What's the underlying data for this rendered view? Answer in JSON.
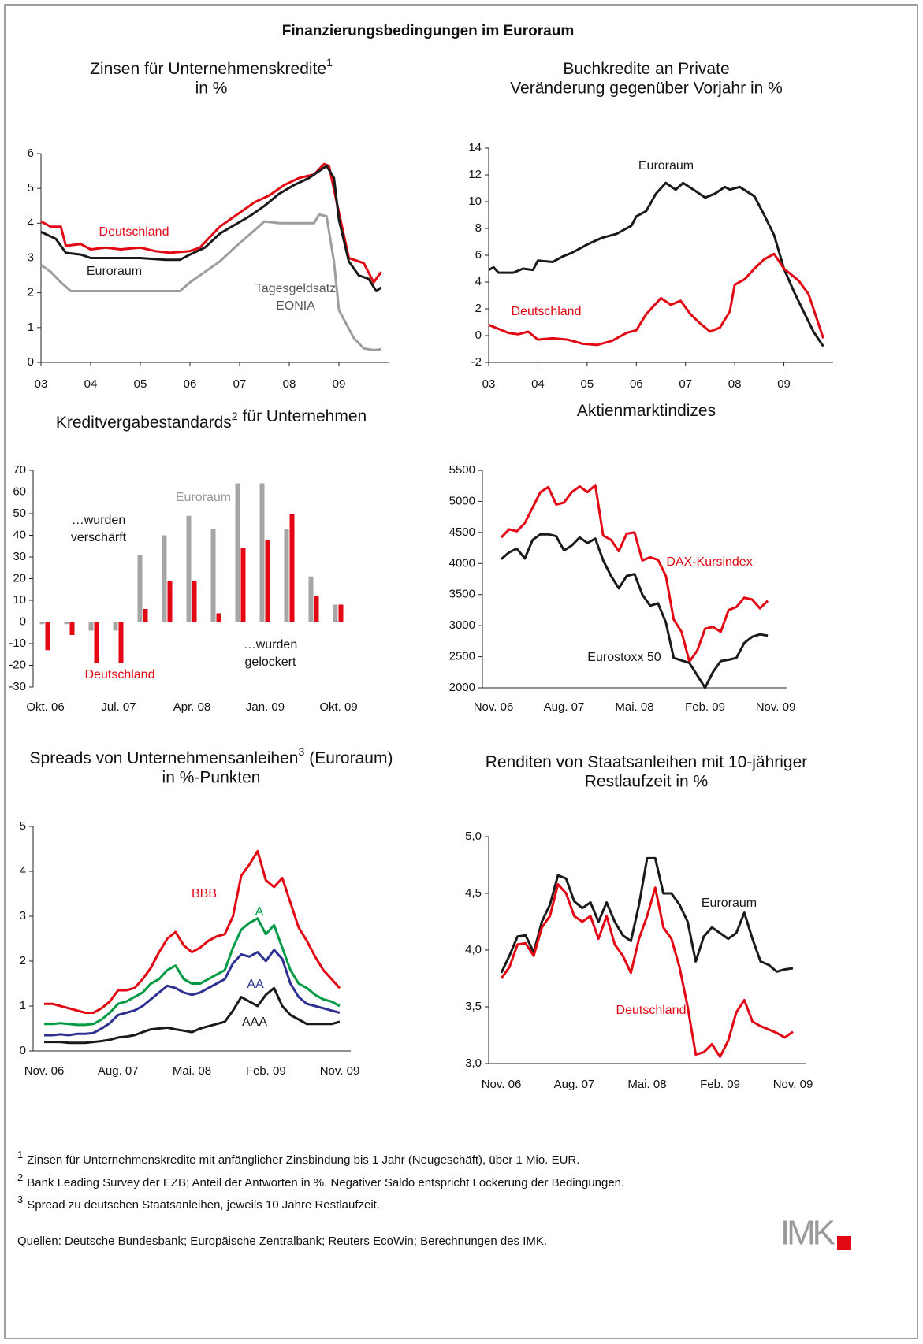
{
  "title": "Finanzierungsbedingungen im Euroraum",
  "footnotes": [
    {
      "marker": "1",
      "text": "Zinsen für Unternehmenskredite mit anfänglicher Zinsbindung bis 1 Jahr (Neugeschäft), über 1 Mio. EUR."
    },
    {
      "marker": "2",
      "text": "Bank Leading Survey der EZB; Anteil der Antworten in %. Negativer Saldo entspricht Lockerung der Bedingungen."
    },
    {
      "marker": "3",
      "text": "Spread zu deutschen Staatsanleihen, jeweils 10 Jahre Restlaufzeit."
    }
  ],
  "source": "Quellen: Deutsche Bundesbank; Europäische Zentralbank; Reuters EcoWin; Berechnungen des IMK.",
  "logo": "IMK",
  "chart_data": [
    {
      "type": "line",
      "title": "Zinsen für Unternehmenskredite",
      "title_note": "1",
      "subtitle": "in %",
      "xlim": [
        3,
        10
      ],
      "xticks": [
        {
          "value": 3,
          "label": "03"
        },
        {
          "value": 4,
          "label": "04"
        },
        {
          "value": 5,
          "label": "05"
        },
        {
          "value": 6,
          "label": "06"
        },
        {
          "value": 7,
          "label": "07"
        },
        {
          "value": 8,
          "label": "08"
        },
        {
          "value": 9,
          "label": "09"
        }
      ],
      "ylim": [
        0,
        6
      ],
      "yticks": [
        0,
        1,
        2,
        3,
        4,
        5,
        6
      ],
      "series": [
        {
          "name": "Deutschland",
          "color": "#e30613",
          "x": [
            3.0,
            3.2,
            3.4,
            3.5,
            3.8,
            4.0,
            4.3,
            4.6,
            5.0,
            5.3,
            5.6,
            6.0,
            6.2,
            6.4,
            6.6,
            6.8,
            7.0,
            7.3,
            7.6,
            7.9,
            8.2,
            8.5,
            8.7,
            8.8,
            9.0,
            9.2,
            9.5,
            9.7,
            9.85
          ],
          "values": [
            4.05,
            3.9,
            3.9,
            3.35,
            3.4,
            3.25,
            3.3,
            3.25,
            3.3,
            3.2,
            3.15,
            3.2,
            3.3,
            3.6,
            3.9,
            4.1,
            4.3,
            4.6,
            4.8,
            5.1,
            5.3,
            5.4,
            5.7,
            5.65,
            4.3,
            3.0,
            2.85,
            2.3,
            2.6
          ]
        },
        {
          "name": "Euroraum",
          "color": "#1a1a1a",
          "x": [
            3.0,
            3.3,
            3.5,
            3.8,
            4.0,
            4.5,
            5.0,
            5.5,
            5.8,
            6.0,
            6.3,
            6.6,
            6.9,
            7.2,
            7.5,
            7.8,
            8.1,
            8.4,
            8.6,
            8.75,
            8.9,
            9.0,
            9.2,
            9.4,
            9.6,
            9.75,
            9.85
          ],
          "values": [
            3.75,
            3.55,
            3.15,
            3.1,
            3.0,
            3.0,
            3.0,
            2.95,
            2.95,
            3.1,
            3.3,
            3.7,
            3.95,
            4.2,
            4.5,
            4.85,
            5.1,
            5.3,
            5.5,
            5.65,
            5.3,
            4.1,
            2.9,
            2.5,
            2.4,
            2.05,
            2.15
          ]
        },
        {
          "name": "Tagesgeldsatz EONIA",
          "color": "#9d9d9d",
          "x": [
            3.0,
            3.2,
            3.4,
            3.6,
            4.0,
            4.5,
            5.0,
            5.5,
            5.8,
            6.0,
            6.3,
            6.6,
            6.9,
            7.3,
            7.5,
            7.8,
            8.0,
            8.3,
            8.5,
            8.6,
            8.75,
            8.9,
            9.0,
            9.3,
            9.5,
            9.7,
            9.85
          ],
          "values": [
            2.8,
            2.6,
            2.3,
            2.05,
            2.05,
            2.05,
            2.05,
            2.05,
            2.05,
            2.3,
            2.6,
            2.9,
            3.3,
            3.8,
            4.05,
            4.0,
            4.0,
            4.0,
            4.0,
            4.25,
            4.2,
            2.9,
            1.5,
            0.7,
            0.4,
            0.35,
            0.38
          ]
        }
      ]
    },
    {
      "type": "line",
      "title": "Buchkredite an Private",
      "subtitle": "Veränderung gegenüber Vorjahr in %",
      "xlim": [
        3,
        10
      ],
      "xticks": [
        {
          "value": 3,
          "label": "03"
        },
        {
          "value": 4,
          "label": "04"
        },
        {
          "value": 5,
          "label": "05"
        },
        {
          "value": 6,
          "label": "06"
        },
        {
          "value": 7,
          "label": "07"
        },
        {
          "value": 8,
          "label": "08"
        },
        {
          "value": 9,
          "label": "09"
        }
      ],
      "ylim": [
        -2,
        14
      ],
      "yticks": [
        -2,
        0,
        2,
        4,
        6,
        8,
        10,
        12,
        14
      ],
      "series": [
        {
          "name": "Euroraum",
          "color": "#1a1a1a",
          "x": [
            3.0,
            3.1,
            3.2,
            3.5,
            3.7,
            3.9,
            4.0,
            4.3,
            4.5,
            4.7,
            5.0,
            5.3,
            5.6,
            5.9,
            6.0,
            6.2,
            6.4,
            6.6,
            6.8,
            6.95,
            7.2,
            7.4,
            7.6,
            7.8,
            7.9,
            8.1,
            8.4,
            8.6,
            8.8,
            9.0,
            9.2,
            9.4,
            9.6,
            9.8
          ],
          "values": [
            4.9,
            5.1,
            4.7,
            4.7,
            5.0,
            4.9,
            5.6,
            5.5,
            5.9,
            6.2,
            6.8,
            7.3,
            7.6,
            8.2,
            8.9,
            9.3,
            10.6,
            11.4,
            10.9,
            11.4,
            10.8,
            10.3,
            10.6,
            11.1,
            10.9,
            11.1,
            10.4,
            9.0,
            7.5,
            5.0,
            3.3,
            1.8,
            0.3,
            -0.8
          ]
        },
        {
          "name": "Deutschland",
          "color": "#e30613",
          "x": [
            3.0,
            3.2,
            3.4,
            3.6,
            3.8,
            4.0,
            4.3,
            4.6,
            4.9,
            5.2,
            5.5,
            5.8,
            6.0,
            6.2,
            6.5,
            6.7,
            6.9,
            7.1,
            7.3,
            7.5,
            7.7,
            7.9,
            8.0,
            8.2,
            8.4,
            8.6,
            8.8,
            9.0,
            9.3,
            9.5,
            9.7,
            9.8
          ],
          "values": [
            0.8,
            0.5,
            0.2,
            0.1,
            0.3,
            -0.3,
            -0.2,
            -0.3,
            -0.6,
            -0.7,
            -0.4,
            0.2,
            0.4,
            1.6,
            2.8,
            2.3,
            2.6,
            1.6,
            0.9,
            0.3,
            0.6,
            1.8,
            3.8,
            4.2,
            5.0,
            5.7,
            6.1,
            5.0,
            4.1,
            3.1,
            0.9,
            -0.2
          ]
        }
      ]
    },
    {
      "type": "bar",
      "title": "Kreditvergabestandards",
      "title_note": "2",
      "subtitle": "für Unternehmen",
      "categories": [
        "Okt. 06",
        null,
        null,
        "Jul. 07",
        null,
        null,
        "Apr. 08",
        null,
        null,
        "Jan. 09",
        null,
        null,
        "Okt. 09"
      ],
      "ylim": [
        -30,
        70
      ],
      "yticks": [
        -30,
        -20,
        -10,
        0,
        10,
        20,
        30,
        40,
        50,
        60,
        70
      ],
      "annotations": [
        "…wurden verschärft",
        "…wurden gelockert"
      ],
      "series": [
        {
          "name": "Euroraum",
          "color": "#a6a6a6",
          "values": [
            -1,
            -1,
            -4,
            -4,
            31,
            40,
            49,
            43,
            64,
            64,
            43,
            21,
            8
          ]
        },
        {
          "name": "Deutschland",
          "color": "#e30613",
          "values": [
            -13,
            -6,
            -19,
            -19,
            6,
            19,
            19,
            4,
            34,
            38,
            50,
            12,
            8
          ]
        }
      ]
    },
    {
      "type": "line",
      "title": "Aktienmarktindizes",
      "categories": [
        "Nov. 06",
        null,
        null,
        null,
        null,
        null,
        null,
        null,
        null,
        "Aug. 07",
        null,
        null,
        null,
        null,
        null,
        null,
        null,
        null,
        "Mai. 08",
        null,
        null,
        null,
        null,
        null,
        null,
        null,
        null,
        "Feb. 09",
        null,
        null,
        null,
        null,
        null,
        null,
        null,
        null,
        "Nov. 09"
      ],
      "ylim": [
        2000,
        5500
      ],
      "yticks": [
        2000,
        2500,
        3000,
        3500,
        4000,
        4500,
        5000,
        5500
      ],
      "series": [
        {
          "name": "DAX-Kursindex",
          "color": "#e30613",
          "values": [
            null,
            4420,
            4550,
            4520,
            4650,
            4900,
            5150,
            5230,
            4950,
            4980,
            5150,
            5240,
            5150,
            5260,
            4450,
            4380,
            4200,
            4480,
            4500,
            4050,
            4100,
            4060,
            3800,
            3100,
            2900,
            2420,
            2600,
            2950,
            2980,
            2900,
            3250,
            3300,
            3450,
            3420,
            3280,
            3400,
            null
          ]
        },
        {
          "name": "Eurostoxx 50",
          "color": "#1a1a1a",
          "values": [
            null,
            4070,
            4180,
            4240,
            4080,
            4380,
            4470,
            4470,
            4440,
            4210,
            4290,
            4420,
            4330,
            4400,
            4050,
            3800,
            3600,
            3800,
            3830,
            3500,
            3320,
            3360,
            3050,
            2480,
            2440,
            2400,
            2200,
            2000,
            2250,
            2430,
            2450,
            2480,
            2720,
            2820,
            2860,
            2840,
            null
          ]
        }
      ]
    },
    {
      "type": "line",
      "title": "Spreads von Unternehmensanleihen",
      "title_note": "3",
      "title_after": "(Euroraum)",
      "subtitle": "in %-Punkten",
      "categories": [
        "Nov. 06",
        null,
        null,
        null,
        null,
        null,
        null,
        null,
        null,
        "Aug. 07",
        null,
        null,
        null,
        null,
        null,
        null,
        null,
        null,
        "Mai. 08",
        null,
        null,
        null,
        null,
        null,
        null,
        null,
        null,
        "Feb. 09",
        null,
        null,
        null,
        null,
        null,
        null,
        null,
        null,
        "Nov. 09"
      ],
      "ylim": [
        0,
        5
      ],
      "yticks": [
        0,
        1,
        2,
        3,
        4,
        5
      ],
      "series": [
        {
          "name": "BBB",
          "color": "#e30613",
          "values": [
            1.05,
            1.05,
            1.0,
            0.95,
            0.9,
            0.85,
            0.85,
            0.95,
            1.1,
            1.35,
            1.35,
            1.4,
            1.6,
            1.85,
            2.2,
            2.5,
            2.65,
            2.35,
            2.2,
            2.3,
            2.45,
            2.55,
            2.6,
            3.0,
            3.9,
            4.15,
            4.45,
            3.8,
            3.65,
            3.85,
            3.3,
            2.75,
            2.45,
            2.1,
            1.8,
            1.6,
            1.4
          ]
        },
        {
          "name": "A",
          "color": "#009a44",
          "values": [
            0.6,
            0.6,
            0.62,
            0.6,
            0.58,
            0.58,
            0.6,
            0.7,
            0.85,
            1.05,
            1.1,
            1.2,
            1.3,
            1.5,
            1.6,
            1.8,
            1.9,
            1.6,
            1.5,
            1.5,
            1.6,
            1.7,
            1.8,
            2.3,
            2.7,
            2.85,
            2.95,
            2.6,
            2.8,
            2.3,
            1.8,
            1.5,
            1.4,
            1.25,
            1.15,
            1.1,
            1.0
          ]
        },
        {
          "name": "AA",
          "color": "#2e3192",
          "values": [
            0.35,
            0.35,
            0.37,
            0.35,
            0.38,
            0.38,
            0.4,
            0.5,
            0.62,
            0.8,
            0.85,
            0.9,
            1.0,
            1.15,
            1.3,
            1.45,
            1.4,
            1.3,
            1.25,
            1.3,
            1.4,
            1.5,
            1.6,
            1.95,
            2.15,
            2.1,
            2.2,
            2.0,
            2.25,
            2.05,
            1.5,
            1.2,
            1.05,
            1.0,
            0.95,
            0.9,
            0.85
          ]
        },
        {
          "name": "AAA",
          "color": "#1a1a1a",
          "values": [
            0.2,
            0.2,
            0.2,
            0.18,
            0.18,
            0.18,
            0.2,
            0.22,
            0.25,
            0.3,
            0.32,
            0.35,
            0.42,
            0.48,
            0.5,
            0.52,
            0.48,
            0.45,
            0.42,
            0.5,
            0.55,
            0.6,
            0.65,
            0.9,
            1.2,
            1.1,
            1.0,
            1.25,
            1.4,
            1.0,
            0.8,
            0.7,
            0.6,
            0.6,
            0.6,
            0.6,
            0.65
          ]
        }
      ]
    },
    {
      "type": "line",
      "title": "Renditen von Staatsanleihen mit 10-jähriger",
      "subtitle": "Restlaufzeit in %",
      "categories": [
        "Nov. 06",
        null,
        null,
        null,
        null,
        null,
        null,
        null,
        null,
        "Aug. 07",
        null,
        null,
        null,
        null,
        null,
        null,
        null,
        null,
        "Mai. 08",
        null,
        null,
        null,
        null,
        null,
        null,
        null,
        null,
        "Feb. 09",
        null,
        null,
        null,
        null,
        null,
        null,
        null,
        null,
        "Nov. 09"
      ],
      "ylim": [
        3,
        5
      ],
      "yticks": [
        {
          "value": 3,
          "label": "3,0"
        },
        {
          "value": 3.5,
          "label": "3,5"
        },
        {
          "value": 4,
          "label": "4,0"
        },
        {
          "value": 4.5,
          "label": "4,5"
        },
        {
          "value": 5,
          "label": "5,0"
        }
      ],
      "series": [
        {
          "name": "Euroraum",
          "color": "#1a1a1a",
          "values": [
            3.8,
            3.95,
            4.12,
            4.13,
            3.98,
            4.25,
            4.4,
            4.66,
            4.63,
            4.43,
            4.37,
            4.42,
            4.25,
            4.42,
            4.25,
            4.13,
            4.08,
            4.4,
            4.81,
            4.81,
            4.5,
            4.5,
            4.4,
            4.25,
            3.9,
            4.12,
            4.2,
            4.15,
            4.1,
            4.15,
            4.33,
            4.1,
            3.9,
            3.87,
            3.81,
            3.83,
            3.84
          ]
        },
        {
          "name": "Deutschland",
          "color": "#e30613",
          "values": [
            3.75,
            3.85,
            4.05,
            4.06,
            3.95,
            4.2,
            4.3,
            4.58,
            4.5,
            4.3,
            4.25,
            4.3,
            4.1,
            4.3,
            4.05,
            3.95,
            3.8,
            4.1,
            4.3,
            4.55,
            4.2,
            4.1,
            3.85,
            3.5,
            3.08,
            3.1,
            3.17,
            3.06,
            3.2,
            3.45,
            3.56,
            3.37,
            3.33,
            3.3,
            3.27,
            3.23,
            3.28
          ]
        }
      ]
    }
  ]
}
